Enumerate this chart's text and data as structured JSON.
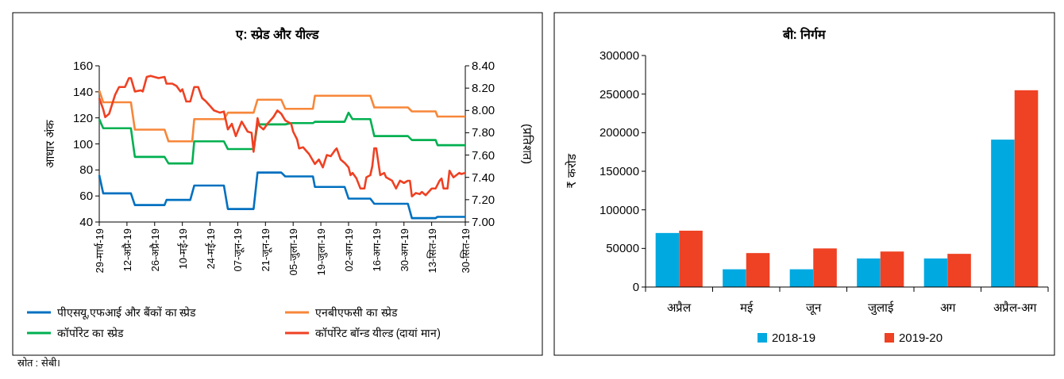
{
  "chart_data": [
    {
      "type": "line",
      "title": "ए: स्प्रेड और यील्ड",
      "ylabel": "आधार अंक",
      "y2label": "(प्रतिशत)",
      "legend": "bottom",
      "annotations": [
        "स्रोत : सेबी।"
      ],
      "xlim": [
        "2019-03-29",
        "2019-09-30"
      ],
      "xticks": [
        {
          "value": "2019-03-29",
          "label": "29-मार्च-19"
        },
        {
          "value": "2019-04-12",
          "label": "12-अप्रै-19"
        },
        {
          "value": "2019-04-26",
          "label": "26-अप्रै-19"
        },
        {
          "value": "2019-05-10",
          "label": "10-मई-19"
        },
        {
          "value": "2019-05-24",
          "label": "24-मई-19"
        },
        {
          "value": "2019-06-07",
          "label": "07-जून-19"
        },
        {
          "value": "2019-06-21",
          "label": "21-जून-19"
        },
        {
          "value": "2019-07-05",
          "label": "05-जुला-19"
        },
        {
          "value": "2019-07-19",
          "label": "19-जुला-19"
        },
        {
          "value": "2019-08-02",
          "label": "02-अग-19"
        },
        {
          "value": "2019-08-16",
          "label": "16-अग-19"
        },
        {
          "value": "2019-08-30",
          "label": "30-अग-19"
        },
        {
          "value": "2019-09-13",
          "label": "13-सित-19"
        },
        {
          "value": "2019-09-30",
          "label": "30-सित-19"
        }
      ],
      "ylim": [
        40,
        160
      ],
      "yticks": [
        40,
        60,
        80,
        100,
        120,
        140,
        160
      ],
      "y2lim": [
        7,
        8.4
      ],
      "y2ticks": [
        {
          "value": 7,
          "label": "7.00"
        },
        {
          "value": 7.2,
          "label": "7.20"
        },
        {
          "value": 7.4,
          "label": "7.40"
        },
        {
          "value": 7.6,
          "label": "7.60"
        },
        {
          "value": 7.8,
          "label": "7.80"
        },
        {
          "value": 8,
          "label": "8.00"
        },
        {
          "value": 8.2,
          "label": "8.20"
        },
        {
          "value": 8.4,
          "label": "8.40"
        }
      ],
      "series": [
        {
          "name": "पीएसयू,एफआई और बैंकों का स्प्रेड",
          "color": "#0070c0",
          "x": [
            "2019-03-29",
            "2019-03-31",
            "2019-04-14",
            "2019-04-16",
            "2019-05-01",
            "2019-05-02",
            "2019-05-14",
            "2019-05-16",
            "2019-05-31",
            "2019-06-02",
            "2019-06-15",
            "2019-06-17",
            "2019-06-29",
            "2019-07-01",
            "2019-07-15",
            "2019-07-16",
            "2019-07-31",
            "2019-08-02",
            "2019-08-13",
            "2019-08-15",
            "2019-09-01",
            "2019-09-03",
            "2019-09-15",
            "2019-09-16",
            "2019-09-30"
          ],
          "values": [
            76,
            62,
            62,
            53,
            53,
            57,
            57,
            68,
            68,
            50,
            50,
            78,
            78,
            75,
            75,
            67,
            67,
            58,
            58,
            54,
            54,
            43,
            43,
            44,
            44
          ]
        },
        {
          "name": "एनबीएफसी का स्प्रेड",
          "color": "#f7873a",
          "x": [
            "2019-03-29",
            "2019-03-31",
            "2019-04-14",
            "2019-04-16",
            "2019-05-01",
            "2019-05-03",
            "2019-05-15",
            "2019-05-16",
            "2019-05-31",
            "2019-06-02",
            "2019-06-15",
            "2019-06-17",
            "2019-06-29",
            "2019-07-01",
            "2019-07-15",
            "2019-07-16",
            "2019-08-13",
            "2019-08-15",
            "2019-09-01",
            "2019-09-03",
            "2019-09-15",
            "2019-09-16",
            "2019-09-30"
          ],
          "values": [
            141,
            132,
            132,
            111,
            111,
            102,
            102,
            119,
            119,
            124,
            124,
            134,
            134,
            127,
            127,
            137,
            137,
            128,
            128,
            125,
            125,
            121,
            121
          ]
        },
        {
          "name": "कॉर्पोरेट का स्प्रेड",
          "color": "#00b050",
          "x": [
            "2019-03-29",
            "2019-03-31",
            "2019-04-14",
            "2019-04-16",
            "2019-05-01",
            "2019-05-03",
            "2019-05-15",
            "2019-05-16",
            "2019-05-31",
            "2019-06-02",
            "2019-06-15",
            "2019-06-17",
            "2019-07-01",
            "2019-07-04",
            "2019-07-15",
            "2019-07-16",
            "2019-07-31",
            "2019-08-02",
            "2019-08-04",
            "2019-08-13",
            "2019-08-15",
            "2019-09-01",
            "2019-09-03",
            "2019-09-15",
            "2019-09-16",
            "2019-09-30"
          ],
          "values": [
            119,
            112,
            112,
            90,
            90,
            85,
            85,
            102,
            102,
            96,
            96,
            115,
            115,
            116,
            116,
            117,
            117,
            124,
            119,
            119,
            106,
            106,
            103,
            103,
            99,
            99
          ]
        },
        {
          "name": "कॉर्पोरेट बॉन्ड यील्ड (दायां मान)",
          "color": "#ef4123",
          "axis": "y2",
          "x": [
            "2019-03-29",
            "2019-03-31",
            "2019-04-01",
            "2019-04-03",
            "2019-04-06",
            "2019-04-08",
            "2019-04-11",
            "2019-04-13",
            "2019-04-14",
            "2019-04-16",
            "2019-04-19",
            "2019-04-20",
            "2019-04-22",
            "2019-04-24",
            "2019-04-28",
            "2019-05-01",
            "2019-05-02",
            "2019-05-05",
            "2019-05-07",
            "2019-05-09",
            "2019-05-10",
            "2019-05-12",
            "2019-05-14",
            "2019-05-16",
            "2019-05-18",
            "2019-05-20",
            "2019-05-22",
            "2019-05-24",
            "2019-05-26",
            "2019-05-29",
            "2019-05-31",
            "2019-06-02",
            "2019-06-04",
            "2019-06-06",
            "2019-06-09",
            "2019-06-12",
            "2019-06-14",
            "2019-06-15",
            "2019-06-17",
            "2019-06-18",
            "2019-06-20",
            "2019-06-22",
            "2019-06-25",
            "2019-06-27",
            "2019-06-29",
            "2019-07-01",
            "2019-07-04",
            "2019-07-05",
            "2019-07-07",
            "2019-07-08",
            "2019-07-10",
            "2019-07-12",
            "2019-07-13",
            "2019-07-16",
            "2019-07-18",
            "2019-07-20",
            "2019-07-22",
            "2019-07-24",
            "2019-07-26",
            "2019-07-27",
            "2019-07-29",
            "2019-07-31",
            "2019-08-02",
            "2019-08-03",
            "2019-08-04",
            "2019-08-06",
            "2019-08-08",
            "2019-08-10",
            "2019-08-11",
            "2019-08-13",
            "2019-08-14",
            "2019-08-15",
            "2019-08-16",
            "2019-08-18",
            "2019-08-20",
            "2019-08-21",
            "2019-08-24",
            "2019-08-26",
            "2019-08-28",
            "2019-08-30",
            "2019-09-01",
            "2019-09-02",
            "2019-09-03",
            "2019-09-05",
            "2019-09-07",
            "2019-09-08",
            "2019-09-10",
            "2019-09-13",
            "2019-09-15",
            "2019-09-17",
            "2019-09-18",
            "2019-09-19",
            "2019-09-21",
            "2019-09-22",
            "2019-09-24",
            "2019-09-27",
            "2019-09-28",
            "2019-09-30"
          ],
          "values": [
            8.11,
            8.01,
            7.94,
            7.97,
            8.14,
            8.21,
            8.21,
            8.29,
            8.29,
            8.17,
            8.18,
            8.17,
            8.3,
            8.31,
            8.29,
            8.3,
            8.24,
            8.24,
            8.22,
            8.17,
            8.19,
            8.08,
            8.08,
            8.21,
            8.21,
            8.11,
            8.08,
            8.04,
            8.0,
            7.98,
            7.99,
            7.83,
            7.88,
            7.77,
            7.9,
            7.81,
            7.8,
            7.63,
            7.93,
            7.86,
            7.83,
            7.88,
            7.94,
            8.0,
            7.97,
            7.91,
            7.88,
            7.81,
            7.74,
            7.66,
            7.67,
            7.63,
            7.61,
            7.52,
            7.56,
            7.49,
            7.6,
            7.59,
            7.64,
            7.66,
            7.56,
            7.53,
            7.49,
            7.42,
            7.44,
            7.39,
            7.3,
            7.3,
            7.4,
            7.42,
            7.5,
            7.66,
            7.66,
            7.42,
            7.44,
            7.4,
            7.37,
            7.3,
            7.37,
            7.35,
            7.37,
            7.37,
            7.23,
            7.26,
            7.25,
            7.27,
            7.24,
            7.3,
            7.3,
            7.37,
            7.39,
            7.3,
            7.3,
            7.46,
            7.4,
            7.44,
            7.43,
            7.44
          ]
        }
      ]
    },
    {
      "type": "bar",
      "title": "बी: निर्गम",
      "ylabel": "₹ करोड",
      "legend": "bottom",
      "categories": [
        "अप्रैल",
        "मई",
        "जून",
        "जुलाई",
        "अग",
        "अप्रैल-अग"
      ],
      "ylim": [
        0,
        300000
      ],
      "yticks": [
        0,
        50000,
        100000,
        150000,
        200000,
        250000,
        300000
      ],
      "series": [
        {
          "name": "2018-19",
          "color": "#00a9e0",
          "values": [
            70000,
            23000,
            23000,
            37000,
            37000,
            191000
          ]
        },
        {
          "name": "2019-20",
          "color": "#ef4123",
          "values": [
            73000,
            44000,
            50000,
            46000,
            43000,
            255000
          ]
        }
      ]
    }
  ]
}
